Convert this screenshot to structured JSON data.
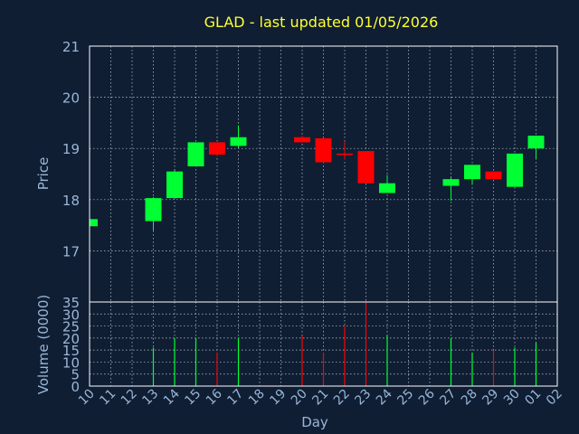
{
  "colors": {
    "background": "#0f1e33",
    "text": "#9ab6d6",
    "title": "#ffff33",
    "up": "#00ff33",
    "down": "#ff0000",
    "grid": "#c0c8d0",
    "frame": "#ffffff"
  },
  "chart_data": {
    "type": "candlestick",
    "title": "GLAD - last updated 01/05/2026",
    "xlabel": "Day",
    "grid": true,
    "x_tick_labels": [
      "10",
      "11",
      "12",
      "13",
      "14",
      "15",
      "16",
      "17",
      "18",
      "19",
      "20",
      "21",
      "22",
      "23",
      "24",
      "25",
      "26",
      "27",
      "28",
      "29",
      "30",
      "01",
      "02"
    ],
    "price_panel": {
      "ylabel": "Price",
      "ylim": [
        16.0,
        21.0
      ],
      "yticks": [
        17,
        18,
        19,
        20,
        21
      ],
      "candles": [
        {
          "day": "10",
          "open": 17.48,
          "high": 17.62,
          "low": 17.48,
          "close": 17.62
        },
        {
          "day": "13",
          "open": 17.58,
          "high": 18.05,
          "low": 17.4,
          "close": 18.03
        },
        {
          "day": "14",
          "open": 18.03,
          "high": 18.57,
          "low": 18.03,
          "close": 18.55
        },
        {
          "day": "15",
          "open": 18.65,
          "high": 19.12,
          "low": 18.65,
          "close": 19.12
        },
        {
          "day": "16",
          "open": 19.12,
          "high": 19.12,
          "low": 18.85,
          "close": 18.88
        },
        {
          "day": "17",
          "open": 19.05,
          "high": 19.45,
          "low": 19.02,
          "close": 19.22
        },
        {
          "day": "20",
          "open": 19.22,
          "high": 19.25,
          "low": 19.12,
          "close": 19.12
        },
        {
          "day": "21",
          "open": 19.2,
          "high": 19.2,
          "low": 18.72,
          "close": 18.73
        },
        {
          "day": "22",
          "open": 18.9,
          "high": 19.15,
          "low": 18.78,
          "close": 18.88
        },
        {
          "day": "23",
          "open": 18.95,
          "high": 18.95,
          "low": 18.32,
          "close": 18.32
        },
        {
          "day": "24",
          "open": 18.13,
          "high": 18.48,
          "low": 18.13,
          "close": 18.32
        },
        {
          "day": "27",
          "open": 18.27,
          "high": 18.43,
          "low": 17.98,
          "close": 18.4
        },
        {
          "day": "28",
          "open": 18.4,
          "high": 18.68,
          "low": 18.3,
          "close": 18.68
        },
        {
          "day": "29",
          "open": 18.55,
          "high": 18.55,
          "low": 18.4,
          "close": 18.4
        },
        {
          "day": "30",
          "open": 18.25,
          "high": 18.9,
          "low": 18.25,
          "close": 18.9
        },
        {
          "day": "01",
          "open": 19.0,
          "high": 19.25,
          "low": 18.8,
          "close": 19.25
        }
      ]
    },
    "volume_panel": {
      "ylabel": "Volume (0000)",
      "ylim": [
        0,
        35
      ],
      "yticks": [
        0,
        5,
        10,
        15,
        20,
        25,
        30,
        35
      ],
      "bars": [
        {
          "day": "10",
          "value": 0,
          "direction": "up"
        },
        {
          "day": "13",
          "value": 16,
          "direction": "up"
        },
        {
          "day": "14",
          "value": 20,
          "direction": "up"
        },
        {
          "day": "15",
          "value": 20,
          "direction": "up"
        },
        {
          "day": "16",
          "value": 14,
          "direction": "down"
        },
        {
          "day": "17",
          "value": 20,
          "direction": "up"
        },
        {
          "day": "20",
          "value": 21,
          "direction": "down"
        },
        {
          "day": "21",
          "value": 14,
          "direction": "down"
        },
        {
          "day": "22",
          "value": 25,
          "direction": "down"
        },
        {
          "day": "23",
          "value": 35,
          "direction": "down"
        },
        {
          "day": "24",
          "value": 21,
          "direction": "up"
        },
        {
          "day": "27",
          "value": 20,
          "direction": "up"
        },
        {
          "day": "28",
          "value": 14,
          "direction": "up"
        },
        {
          "day": "29",
          "value": 15,
          "direction": "down"
        },
        {
          "day": "30",
          "value": 16,
          "direction": "up"
        },
        {
          "day": "01",
          "value": 18,
          "direction": "up"
        }
      ]
    }
  }
}
